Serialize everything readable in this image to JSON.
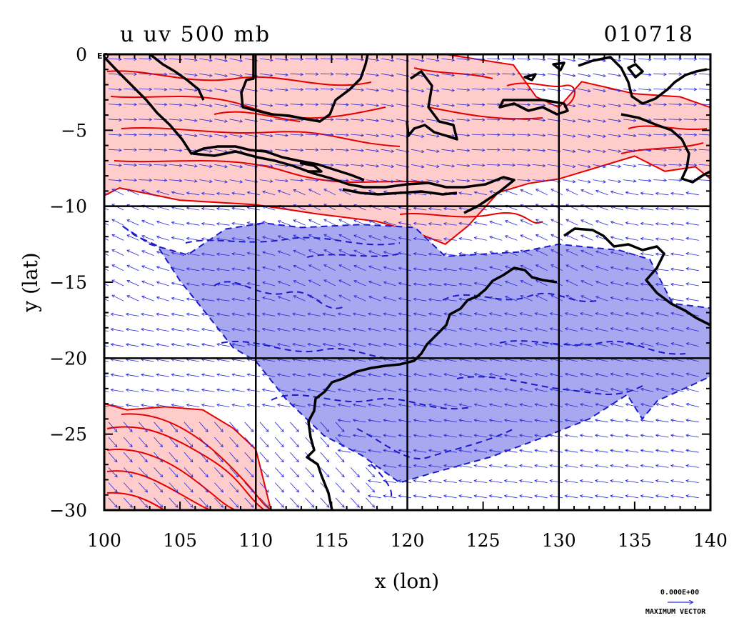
{
  "header": {
    "left_title": "u uv 500 mb",
    "right_title": "010718"
  },
  "axes": {
    "xlabel": "x (lon)",
    "ylabel": "y (lat)",
    "x_ticks": [
      "100",
      "105",
      "110",
      "115",
      "120",
      "125",
      "130",
      "135",
      "140"
    ],
    "y_ticks": [
      "0",
      "−5",
      "−10",
      "−15",
      "−20",
      "−25",
      "−30"
    ],
    "eq_label": "EQ",
    "xlim": [
      100,
      140
    ],
    "ylim": [
      -30,
      0
    ],
    "gridlines_lon": [
      110,
      120,
      130
    ],
    "gridlines_lat": [
      -10,
      -20
    ]
  },
  "legend": {
    "value": "0.000E+00",
    "label": "MAXIMUM VECTOR"
  },
  "colors": {
    "positive_fill": "#ffcccc",
    "positive_contour": "#e60000",
    "negative_fill": "#a8a8f0",
    "negative_contour": "#1a1acc",
    "vector": "#2828d8",
    "coastline": "#000000"
  },
  "chart_data": {
    "type": "map",
    "variable": "u",
    "level": "500 mb",
    "lon_range": [
      100,
      140
    ],
    "lat_range": [
      -30,
      0
    ],
    "positive_regions": [
      {
        "lon": [
          100.0,
          101.0,
          104.0,
          108.0,
          112.0,
          116.0,
          120.0,
          122.5,
          127.0,
          128.5,
          130.0,
          131.5,
          135.0,
          138.0,
          140.0,
          140.0,
          139.0,
          137.0,
          135.0,
          130.0,
          128.0,
          126.0,
          124.0,
          122.5,
          120.5,
          118.0,
          114.0,
          110.0,
          105.0,
          101.0,
          100.0
        ],
        "lat": [
          0.0,
          0.0,
          0.0,
          0.0,
          0.0,
          0.0,
          0.0,
          0.0,
          -0.7,
          -2.8,
          -3.5,
          -1.8,
          -2.6,
          -2.8,
          -3.5,
          -8.2,
          -7.4,
          -7.7,
          -6.7,
          -8.2,
          -8.5,
          -9.1,
          -11.3,
          -12.5,
          -11.7,
          -11.0,
          -10.5,
          -9.9,
          -9.6,
          -8.8,
          -9.3
        ]
      },
      {
        "lon": [
          100.0,
          101.5,
          104.0,
          106.5,
          108.5,
          110.0,
          111.0,
          110.0,
          100.0
        ],
        "lat": [
          -23.0,
          -23.4,
          -23.2,
          -23.4,
          -24.6,
          -26.0,
          -30.0,
          -30.0,
          -30.0
        ]
      }
    ],
    "negative_regions": [
      {
        "lon": [
          101.2,
          103.0,
          105.5,
          108.0,
          110.5,
          113.0,
          117.0,
          120.5,
          122.5,
          127.5,
          130.0,
          134.0,
          136.0,
          137.5,
          140.0,
          140.0,
          138.5,
          136.5,
          135.5,
          134.5,
          132.0,
          129.0,
          125.5,
          121.5,
          119.5,
          117.0,
          114.5,
          112.0,
          110.0,
          108.5,
          107.0,
          105.0,
          103.5,
          102.0,
          101.2
        ],
        "lat": [
          -11.3,
          -12.5,
          -13.2,
          -11.5,
          -11.1,
          -11.4,
          -11.2,
          -11.4,
          -13.3,
          -13.0,
          -12.5,
          -12.9,
          -13.5,
          -16.4,
          -16.7,
          -21.2,
          -21.9,
          -22.8,
          -24.0,
          -22.4,
          -24.0,
          -25.2,
          -26.5,
          -27.6,
          -28.2,
          -26.4,
          -25.1,
          -22.7,
          -20.2,
          -19.3,
          -17.4,
          -14.9,
          -12.6,
          -11.9,
          -11.3
        ]
      }
    ],
    "gridlines": {
      "lon": [
        110,
        120,
        130
      ],
      "lat": [
        -10,
        -20
      ]
    },
    "vector_legend": {
      "value": "0.000E+00",
      "label": "MAXIMUM VECTOR"
    }
  }
}
